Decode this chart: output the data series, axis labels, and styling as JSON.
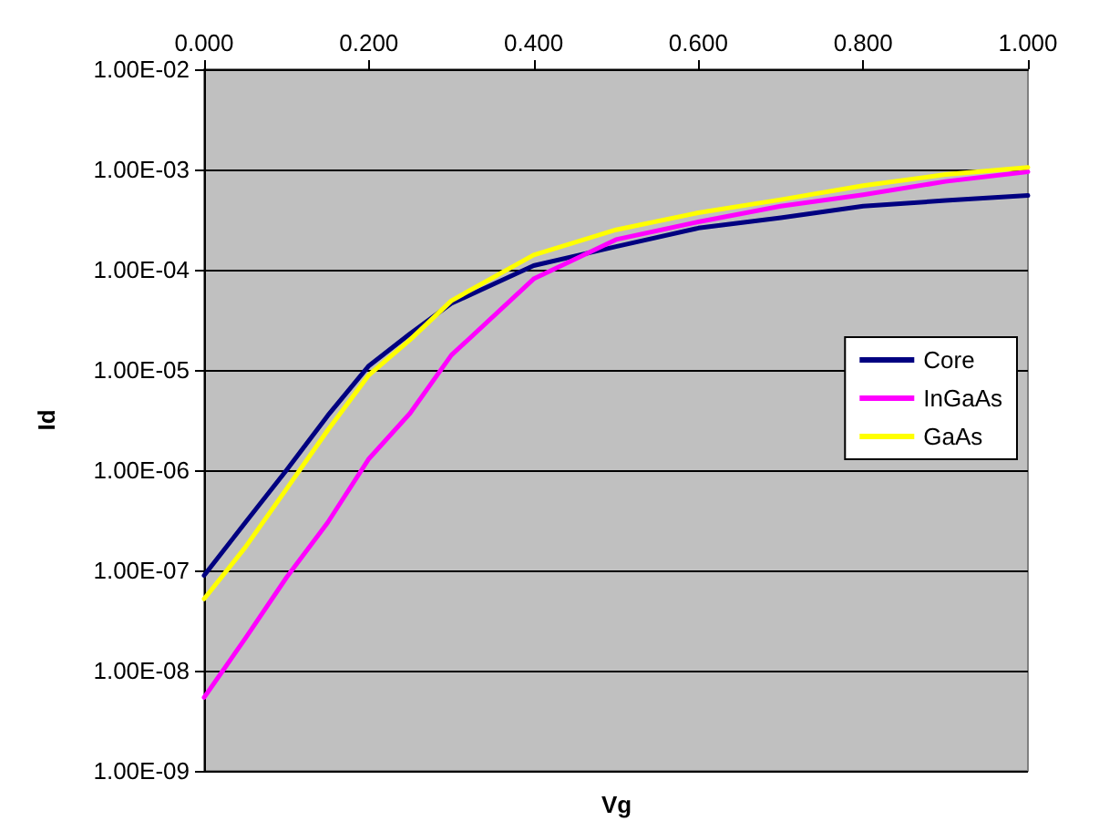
{
  "chart_data": {
    "type": "line",
    "xlabel": "Vg",
    "ylabel": "Id",
    "x": [
      0,
      0.05,
      0.1,
      0.15,
      0.2,
      0.25,
      0.3,
      0.4,
      0.5,
      0.6,
      0.7,
      0.8,
      0.9,
      1.0
    ],
    "series": [
      {
        "name": "Core",
        "color": "#000080",
        "values": [
          8.9e-08,
          3e-07,
          1e-06,
          3.5e-06,
          1.1e-05,
          2.3e-05,
          4.6e-05,
          0.00011,
          0.00017,
          0.00026,
          0.00033,
          0.00043,
          0.00049,
          0.00055
        ]
      },
      {
        "name": "InGaAs",
        "color": "#ff00ff",
        "values": [
          5.4e-09,
          2.1e-08,
          8.5e-08,
          3e-07,
          1.3e-06,
          3.7e-06,
          1.4e-05,
          8.1e-05,
          0.0002,
          0.0003,
          0.00043,
          0.00056,
          0.00076,
          0.00095
        ]
      },
      {
        "name": "GaAs",
        "color": "#ffff00",
        "values": [
          5.2e-08,
          1.7e-07,
          6.5e-07,
          2.5e-06,
          8.9e-06,
          2e-05,
          4.9e-05,
          0.00014,
          0.00025,
          0.00037,
          0.0005,
          0.00069,
          0.00089,
          0.00105
        ]
      }
    ],
    "xlim": [
      0,
      1
    ],
    "xticks": [
      {
        "value": 0,
        "label": "0.000"
      },
      {
        "value": 0.2,
        "label": "0.200"
      },
      {
        "value": 0.4,
        "label": "0.400"
      },
      {
        "value": 0.6,
        "label": "0.600"
      },
      {
        "value": 0.8,
        "label": "0.800"
      },
      {
        "value": 1,
        "label": "1.000"
      }
    ],
    "ylim": [
      1e-09,
      0.01
    ],
    "yticks": [
      {
        "value": 1e-09,
        "label": "1.00E-09"
      },
      {
        "value": 1e-08,
        "label": "1.00E-08"
      },
      {
        "value": 1e-07,
        "label": "1.00E-07"
      },
      {
        "value": 1e-06,
        "label": "1.00E-06"
      },
      {
        "value": 1e-05,
        "label": "1.00E-05"
      },
      {
        "value": 0.0001,
        "label": "1.00E-04"
      },
      {
        "value": 0.001,
        "label": "1.00E-03"
      },
      {
        "value": 0.01,
        "label": "1.00E-02"
      }
    ],
    "log": "y",
    "grid": "y",
    "legend": "right",
    "marker": "none",
    "line_style": "solid"
  }
}
